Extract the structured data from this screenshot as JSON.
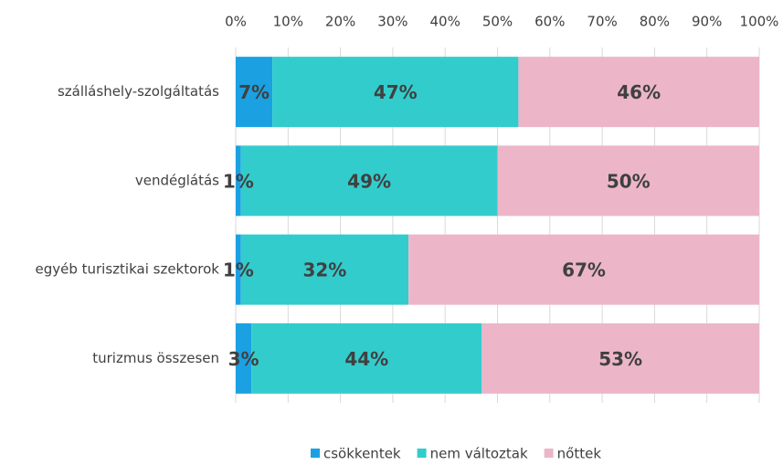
{
  "chart_data": {
    "type": "stacked-barh",
    "categories": [
      "szálláshely-szolgáltatás",
      "vendéglátás",
      "egyéb turisztikai szektorok",
      "turizmus összesen"
    ],
    "series": [
      {
        "name": "csökkentek",
        "color": "#1ba1e2",
        "values": [
          7,
          1,
          1,
          3
        ],
        "value_labels": [
          "7%",
          "1%",
          "1%",
          "3%"
        ]
      },
      {
        "name": "nem változtak",
        "color": "#33cccc",
        "values": [
          47,
          49,
          32,
          44
        ],
        "value_labels": [
          "47%",
          "49%",
          "32%",
          "44%"
        ]
      },
      {
        "name": "nőttek",
        "color": "#ecb6c8",
        "values": [
          46,
          50,
          67,
          53
        ],
        "value_labels": [
          "46%",
          "50%",
          "67%",
          "53%"
        ]
      }
    ],
    "xlim": [
      0,
      100
    ],
    "xticks": [
      {
        "value": 0,
        "label": "0%"
      },
      {
        "value": 10,
        "label": "10%"
      },
      {
        "value": 20,
        "label": "20%"
      },
      {
        "value": 30,
        "label": "30%"
      },
      {
        "value": 40,
        "label": "40%"
      },
      {
        "value": 50,
        "label": "50%"
      },
      {
        "value": 60,
        "label": "60%"
      },
      {
        "value": 70,
        "label": "70%"
      },
      {
        "value": 80,
        "label": "80%"
      },
      {
        "value": 90,
        "label": "90%"
      },
      {
        "value": 100,
        "label": "100%"
      }
    ],
    "grid": true,
    "legend": "bottom"
  }
}
